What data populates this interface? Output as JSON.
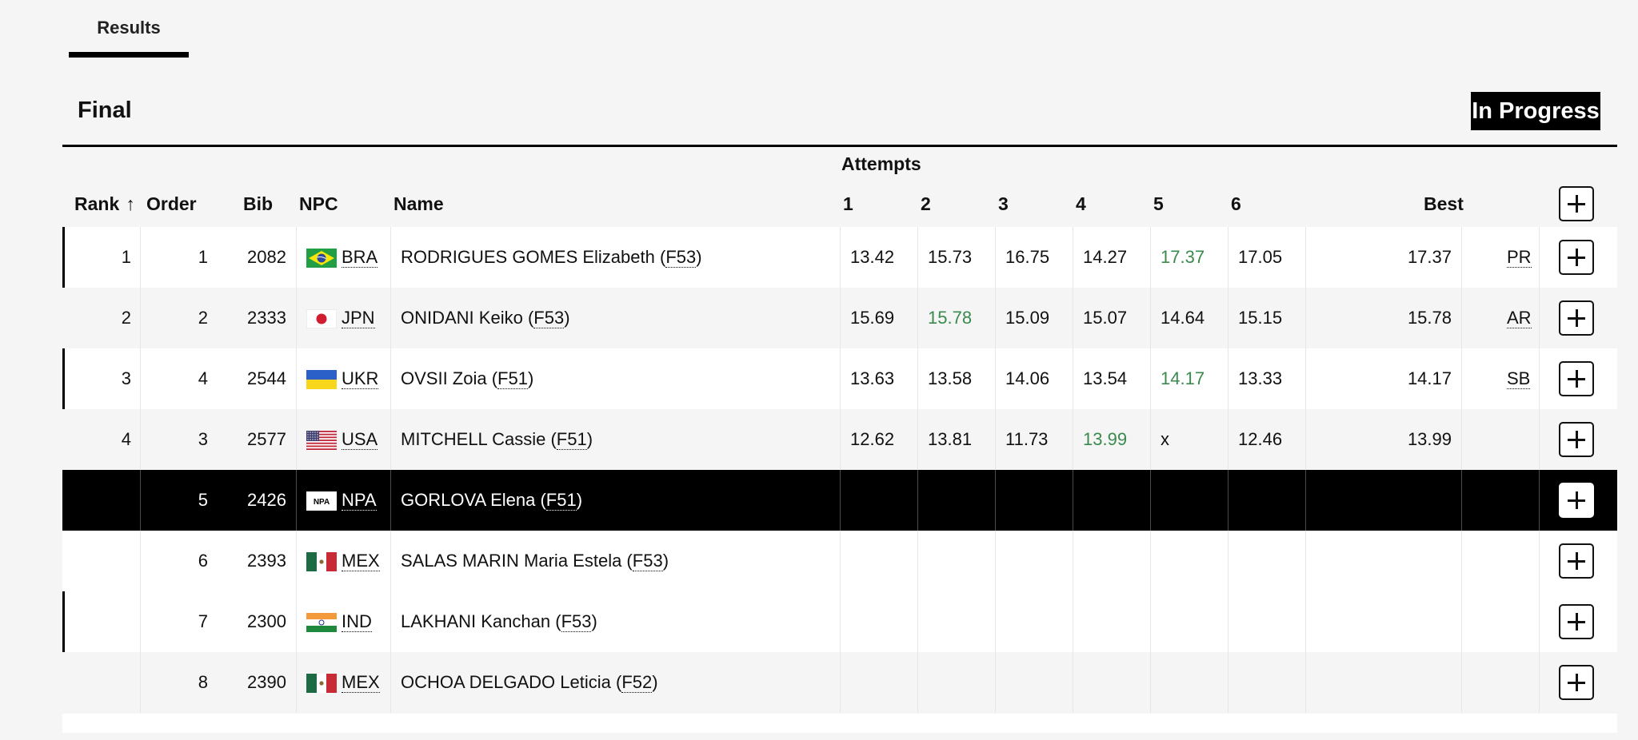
{
  "tabs": {
    "results_label": "Results"
  },
  "event": {
    "title": "Final",
    "status": "In Progress"
  },
  "table": {
    "attempts_label": "Attempts",
    "headers": {
      "rank": "Rank",
      "order": "Order",
      "bib": "Bib",
      "npc": "NPC",
      "name": "Name",
      "a1": "1",
      "a2": "2",
      "a3": "3",
      "a4": "4",
      "a5": "5",
      "a6": "6",
      "best": "Best"
    },
    "rows": [
      {
        "rank": "1",
        "order": "1",
        "bib": "2082",
        "flag": "BRA",
        "npc": "BRA",
        "name": "RODRIGUES GOMES Elizabeth",
        "cls": "F53",
        "attempts": [
          "13.42",
          "15.73",
          "16.75",
          "14.27",
          "17.37",
          "17.05"
        ],
        "best_index": 4,
        "best": "17.37",
        "record": "PR"
      },
      {
        "rank": "2",
        "order": "2",
        "bib": "2333",
        "flag": "JPN",
        "npc": "JPN",
        "name": "ONIDANI Keiko",
        "cls": "F53",
        "attempts": [
          "15.69",
          "15.78",
          "15.09",
          "15.07",
          "14.64",
          "15.15"
        ],
        "best_index": 1,
        "best": "15.78",
        "record": "AR"
      },
      {
        "rank": "3",
        "order": "4",
        "bib": "2544",
        "flag": "UKR",
        "npc": "UKR",
        "name": "OVSII Zoia",
        "cls": "F51",
        "attempts": [
          "13.63",
          "13.58",
          "14.06",
          "13.54",
          "14.17",
          "13.33"
        ],
        "best_index": 4,
        "best": "14.17",
        "record": "SB"
      },
      {
        "rank": "4",
        "order": "3",
        "bib": "2577",
        "flag": "USA",
        "npc": "USA",
        "name": "MITCHELL Cassie",
        "cls": "F51",
        "attempts": [
          "12.62",
          "13.81",
          "11.73",
          "13.99",
          "x",
          "12.46"
        ],
        "best_index": 3,
        "best": "13.99",
        "record": ""
      },
      {
        "rank": "",
        "order": "5",
        "bib": "2426",
        "flag": "NPA",
        "npc": "NPA",
        "name": "GORLOVA Elena",
        "cls": "F51",
        "attempts": [
          "",
          "",
          "",
          "",
          "",
          ""
        ],
        "best_index": -1,
        "best": "",
        "record": ""
      },
      {
        "rank": "",
        "order": "6",
        "bib": "2393",
        "flag": "MEX",
        "npc": "MEX",
        "name": "SALAS MARIN Maria Estela",
        "cls": "F53",
        "attempts": [
          "",
          "",
          "",
          "",
          "",
          ""
        ],
        "best_index": -1,
        "best": "",
        "record": ""
      },
      {
        "rank": "",
        "order": "7",
        "bib": "2300",
        "flag": "IND",
        "npc": "IND",
        "name": "LAKHANI Kanchan",
        "cls": "F53",
        "attempts": [
          "",
          "",
          "",
          "",
          "",
          ""
        ],
        "best_index": -1,
        "best": "",
        "record": ""
      },
      {
        "rank": "",
        "order": "8",
        "bib": "2390",
        "flag": "MEX",
        "npc": "MEX",
        "name": "OCHOA DELGADO Leticia",
        "cls": "F52",
        "attempts": [
          "",
          "",
          "",
          "",
          "",
          ""
        ],
        "best_index": -1,
        "best": "",
        "record": ""
      }
    ]
  },
  "colors": {
    "best_attempt": "#3a8a4d",
    "current_row_bg": "#000000",
    "badge_bg": "#000000"
  }
}
